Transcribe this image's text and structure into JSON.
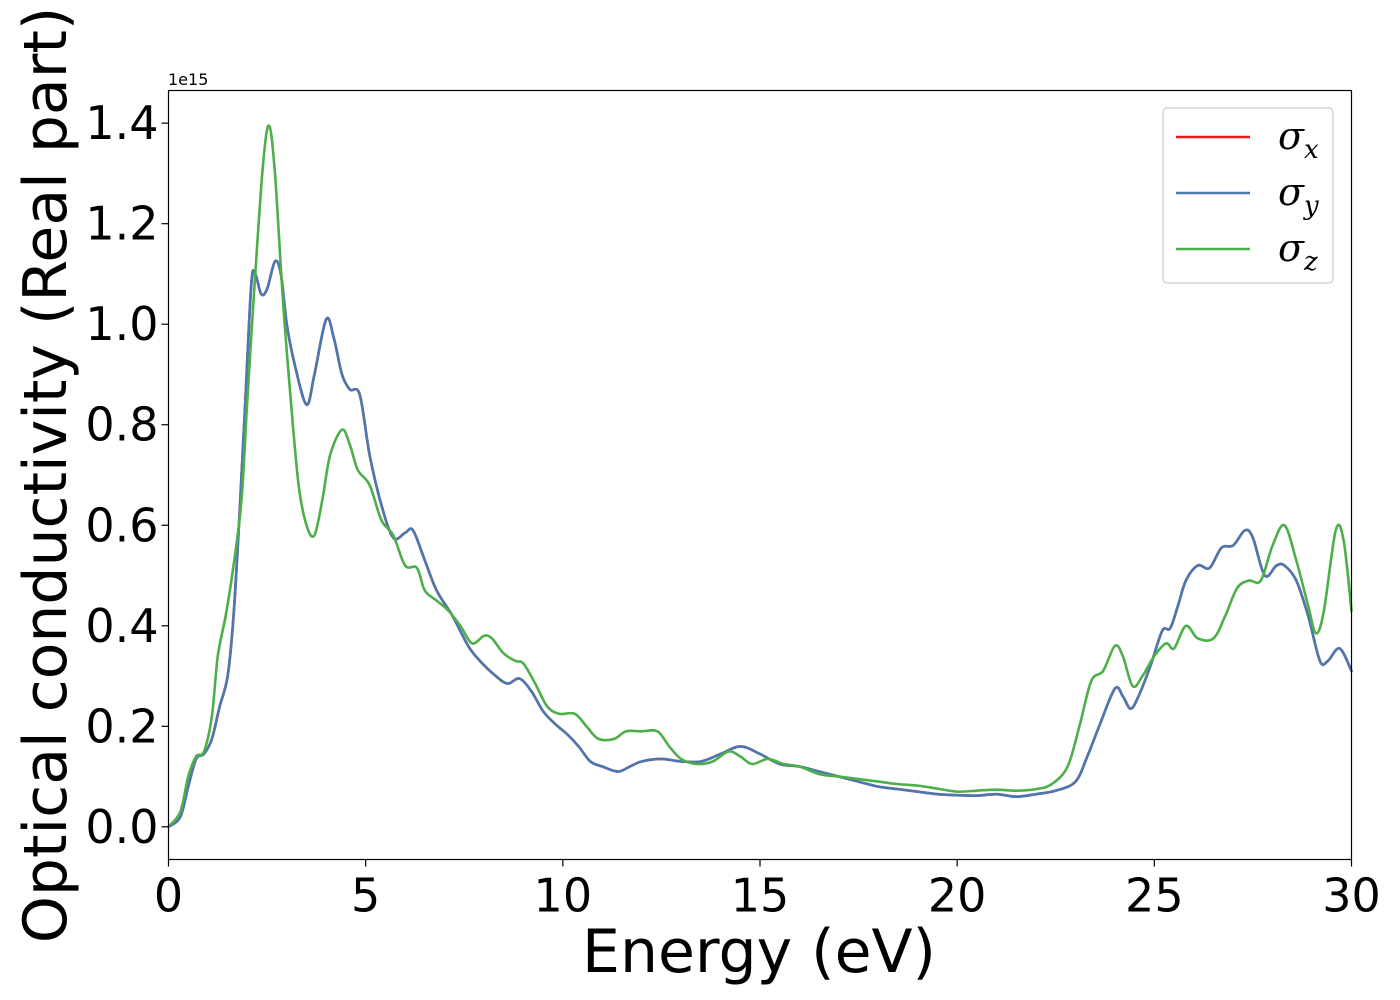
{
  "chart_data": {
    "type": "line",
    "xlabel": "Energy (eV)",
    "ylabel": "Optical conductivity (Real part)",
    "y_offset_label": "1e15",
    "xlim": [
      0,
      30
    ],
    "ylim": [
      -0.065,
      1.465
    ],
    "xticks": [
      0,
      5,
      10,
      15,
      20,
      25,
      30
    ],
    "xtick_labels": [
      "0",
      "5",
      "10",
      "15",
      "20",
      "25",
      "30"
    ],
    "yticks": [
      0.0,
      0.2,
      0.4,
      0.6,
      0.8,
      1.0,
      1.2,
      1.4
    ],
    "ytick_labels": [
      "0.0",
      "0.2",
      "0.4",
      "0.6",
      "0.8",
      "1.0",
      "1.2",
      "1.4"
    ],
    "grid": false,
    "legend_position": "top-right",
    "series": [
      {
        "name": "σ_x",
        "symbol": "σ",
        "subscript": "x",
        "color": "#e41a1c",
        "points": [
          [
            0,
            0
          ],
          [
            0.3,
            0.02
          ],
          [
            0.5,
            0.08
          ],
          [
            0.7,
            0.135
          ],
          [
            0.9,
            0.145
          ],
          [
            1.1,
            0.175
          ],
          [
            1.3,
            0.24
          ],
          [
            1.5,
            0.3
          ],
          [
            1.65,
            0.42
          ],
          [
            1.8,
            0.62
          ],
          [
            1.95,
            0.85
          ],
          [
            2.1,
            1.08
          ],
          [
            2.2,
            1.1
          ],
          [
            2.35,
            1.06
          ],
          [
            2.5,
            1.07
          ],
          [
            2.7,
            1.125
          ],
          [
            2.85,
            1.1
          ],
          [
            3.0,
            1.0
          ],
          [
            3.2,
            0.92
          ],
          [
            3.5,
            0.84
          ],
          [
            3.7,
            0.9
          ],
          [
            4.0,
            1.01
          ],
          [
            4.2,
            0.97
          ],
          [
            4.4,
            0.9
          ],
          [
            4.6,
            0.87
          ],
          [
            4.85,
            0.86
          ],
          [
            5.1,
            0.74
          ],
          [
            5.4,
            0.64
          ],
          [
            5.7,
            0.575
          ],
          [
            6.0,
            0.585
          ],
          [
            6.2,
            0.59
          ],
          [
            6.5,
            0.53
          ],
          [
            6.8,
            0.47
          ],
          [
            7.2,
            0.42
          ],
          [
            7.6,
            0.36
          ],
          [
            7.9,
            0.33
          ],
          [
            8.3,
            0.3
          ],
          [
            8.6,
            0.285
          ],
          [
            8.9,
            0.295
          ],
          [
            9.2,
            0.27
          ],
          [
            9.5,
            0.23
          ],
          [
            9.8,
            0.205
          ],
          [
            10.1,
            0.185
          ],
          [
            10.4,
            0.16
          ],
          [
            10.7,
            0.13
          ],
          [
            11.0,
            0.12
          ],
          [
            11.4,
            0.11
          ],
          [
            11.7,
            0.12
          ],
          [
            12.0,
            0.13
          ],
          [
            12.5,
            0.135
          ],
          [
            13.0,
            0.13
          ],
          [
            13.5,
            0.13
          ],
          [
            14.0,
            0.145
          ],
          [
            14.5,
            0.16
          ],
          [
            15.0,
            0.145
          ],
          [
            15.5,
            0.125
          ],
          [
            16.0,
            0.12
          ],
          [
            16.5,
            0.11
          ],
          [
            17.0,
            0.1
          ],
          [
            17.5,
            0.09
          ],
          [
            18.0,
            0.08
          ],
          [
            18.5,
            0.075
          ],
          [
            19.0,
            0.07
          ],
          [
            19.5,
            0.065
          ],
          [
            20.0,
            0.063
          ],
          [
            20.5,
            0.062
          ],
          [
            21.0,
            0.065
          ],
          [
            21.5,
            0.06
          ],
          [
            22.0,
            0.065
          ],
          [
            22.5,
            0.072
          ],
          [
            23.0,
            0.09
          ],
          [
            23.3,
            0.14
          ],
          [
            23.6,
            0.2
          ],
          [
            24.0,
            0.275
          ],
          [
            24.2,
            0.26
          ],
          [
            24.4,
            0.235
          ],
          [
            24.6,
            0.26
          ],
          [
            24.9,
            0.32
          ],
          [
            25.2,
            0.39
          ],
          [
            25.4,
            0.395
          ],
          [
            25.6,
            0.44
          ],
          [
            25.8,
            0.49
          ],
          [
            26.1,
            0.52
          ],
          [
            26.4,
            0.515
          ],
          [
            26.7,
            0.555
          ],
          [
            27.0,
            0.56
          ],
          [
            27.3,
            0.59
          ],
          [
            27.5,
            0.575
          ],
          [
            27.8,
            0.5
          ],
          [
            28.1,
            0.52
          ],
          [
            28.3,
            0.52
          ],
          [
            28.6,
            0.49
          ],
          [
            28.9,
            0.42
          ],
          [
            29.2,
            0.33
          ],
          [
            29.4,
            0.33
          ],
          [
            29.7,
            0.355
          ],
          [
            30.0,
            0.31
          ]
        ]
      },
      {
        "name": "σ_y",
        "symbol": "σ",
        "subscript": "y",
        "color": "#4a78b0",
        "points": [
          [
            0,
            0
          ],
          [
            0.3,
            0.02
          ],
          [
            0.5,
            0.08
          ],
          [
            0.7,
            0.135
          ],
          [
            0.9,
            0.145
          ],
          [
            1.1,
            0.175
          ],
          [
            1.3,
            0.24
          ],
          [
            1.5,
            0.3
          ],
          [
            1.65,
            0.42
          ],
          [
            1.8,
            0.62
          ],
          [
            1.95,
            0.85
          ],
          [
            2.1,
            1.08
          ],
          [
            2.2,
            1.1
          ],
          [
            2.35,
            1.06
          ],
          [
            2.5,
            1.07
          ],
          [
            2.7,
            1.125
          ],
          [
            2.85,
            1.1
          ],
          [
            3.0,
            1.0
          ],
          [
            3.2,
            0.92
          ],
          [
            3.5,
            0.84
          ],
          [
            3.7,
            0.9
          ],
          [
            4.0,
            1.01
          ],
          [
            4.2,
            0.97
          ],
          [
            4.4,
            0.9
          ],
          [
            4.6,
            0.87
          ],
          [
            4.85,
            0.86
          ],
          [
            5.1,
            0.74
          ],
          [
            5.4,
            0.64
          ],
          [
            5.7,
            0.575
          ],
          [
            6.0,
            0.585
          ],
          [
            6.2,
            0.59
          ],
          [
            6.5,
            0.53
          ],
          [
            6.8,
            0.47
          ],
          [
            7.2,
            0.42
          ],
          [
            7.6,
            0.36
          ],
          [
            7.9,
            0.33
          ],
          [
            8.3,
            0.3
          ],
          [
            8.6,
            0.285
          ],
          [
            8.9,
            0.295
          ],
          [
            9.2,
            0.27
          ],
          [
            9.5,
            0.23
          ],
          [
            9.8,
            0.205
          ],
          [
            10.1,
            0.185
          ],
          [
            10.4,
            0.16
          ],
          [
            10.7,
            0.13
          ],
          [
            11.0,
            0.12
          ],
          [
            11.4,
            0.11
          ],
          [
            11.7,
            0.12
          ],
          [
            12.0,
            0.13
          ],
          [
            12.5,
            0.135
          ],
          [
            13.0,
            0.13
          ],
          [
            13.5,
            0.13
          ],
          [
            14.0,
            0.145
          ],
          [
            14.5,
            0.16
          ],
          [
            15.0,
            0.145
          ],
          [
            15.5,
            0.125
          ],
          [
            16.0,
            0.12
          ],
          [
            16.5,
            0.11
          ],
          [
            17.0,
            0.1
          ],
          [
            17.5,
            0.09
          ],
          [
            18.0,
            0.08
          ],
          [
            18.5,
            0.075
          ],
          [
            19.0,
            0.07
          ],
          [
            19.5,
            0.065
          ],
          [
            20.0,
            0.063
          ],
          [
            20.5,
            0.062
          ],
          [
            21.0,
            0.065
          ],
          [
            21.5,
            0.06
          ],
          [
            22.0,
            0.065
          ],
          [
            22.5,
            0.072
          ],
          [
            23.0,
            0.09
          ],
          [
            23.3,
            0.14
          ],
          [
            23.6,
            0.2
          ],
          [
            24.0,
            0.275
          ],
          [
            24.2,
            0.26
          ],
          [
            24.4,
            0.235
          ],
          [
            24.6,
            0.26
          ],
          [
            24.9,
            0.32
          ],
          [
            25.2,
            0.39
          ],
          [
            25.4,
            0.395
          ],
          [
            25.6,
            0.44
          ],
          [
            25.8,
            0.49
          ],
          [
            26.1,
            0.52
          ],
          [
            26.4,
            0.515
          ],
          [
            26.7,
            0.555
          ],
          [
            27.0,
            0.56
          ],
          [
            27.3,
            0.59
          ],
          [
            27.5,
            0.575
          ],
          [
            27.8,
            0.5
          ],
          [
            28.1,
            0.52
          ],
          [
            28.3,
            0.52
          ],
          [
            28.6,
            0.49
          ],
          [
            28.9,
            0.42
          ],
          [
            29.2,
            0.33
          ],
          [
            29.4,
            0.33
          ],
          [
            29.7,
            0.355
          ],
          [
            30.0,
            0.31
          ]
        ]
      },
      {
        "name": "σ_z",
        "symbol": "σ",
        "subscript": "z",
        "color": "#4daf4a",
        "points": [
          [
            0,
            0
          ],
          [
            0.3,
            0.03
          ],
          [
            0.5,
            0.1
          ],
          [
            0.7,
            0.14
          ],
          [
            0.9,
            0.15
          ],
          [
            1.1,
            0.22
          ],
          [
            1.25,
            0.34
          ],
          [
            1.45,
            0.42
          ],
          [
            1.65,
            0.52
          ],
          [
            1.85,
            0.65
          ],
          [
            2.0,
            0.85
          ],
          [
            2.2,
            1.1
          ],
          [
            2.4,
            1.32
          ],
          [
            2.55,
            1.395
          ],
          [
            2.7,
            1.3
          ],
          [
            2.9,
            1.05
          ],
          [
            3.1,
            0.85
          ],
          [
            3.3,
            0.68
          ],
          [
            3.5,
            0.6
          ],
          [
            3.7,
            0.58
          ],
          [
            3.9,
            0.65
          ],
          [
            4.1,
            0.74
          ],
          [
            4.4,
            0.79
          ],
          [
            4.6,
            0.76
          ],
          [
            4.8,
            0.71
          ],
          [
            5.1,
            0.68
          ],
          [
            5.4,
            0.61
          ],
          [
            5.7,
            0.58
          ],
          [
            6.0,
            0.52
          ],
          [
            6.3,
            0.515
          ],
          [
            6.5,
            0.47
          ],
          [
            6.8,
            0.45
          ],
          [
            7.1,
            0.43
          ],
          [
            7.4,
            0.4
          ],
          [
            7.7,
            0.365
          ],
          [
            8.0,
            0.38
          ],
          [
            8.2,
            0.375
          ],
          [
            8.5,
            0.345
          ],
          [
            8.8,
            0.33
          ],
          [
            9.0,
            0.325
          ],
          [
            9.3,
            0.285
          ],
          [
            9.6,
            0.24
          ],
          [
            9.9,
            0.225
          ],
          [
            10.3,
            0.225
          ],
          [
            10.6,
            0.2
          ],
          [
            10.9,
            0.175
          ],
          [
            11.3,
            0.175
          ],
          [
            11.6,
            0.19
          ],
          [
            12.0,
            0.19
          ],
          [
            12.4,
            0.19
          ],
          [
            12.7,
            0.16
          ],
          [
            13.0,
            0.135
          ],
          [
            13.4,
            0.125
          ],
          [
            13.8,
            0.13
          ],
          [
            14.2,
            0.15
          ],
          [
            14.5,
            0.14
          ],
          [
            14.8,
            0.125
          ],
          [
            15.2,
            0.135
          ],
          [
            15.6,
            0.125
          ],
          [
            16.0,
            0.12
          ],
          [
            16.5,
            0.105
          ],
          [
            17.0,
            0.1
          ],
          [
            17.5,
            0.095
          ],
          [
            18.0,
            0.09
          ],
          [
            18.5,
            0.085
          ],
          [
            19.0,
            0.082
          ],
          [
            19.5,
            0.076
          ],
          [
            20.0,
            0.07
          ],
          [
            20.5,
            0.072
          ],
          [
            21.0,
            0.074
          ],
          [
            21.5,
            0.072
          ],
          [
            22.0,
            0.075
          ],
          [
            22.4,
            0.085
          ],
          [
            22.8,
            0.12
          ],
          [
            23.1,
            0.2
          ],
          [
            23.4,
            0.29
          ],
          [
            23.7,
            0.31
          ],
          [
            24.0,
            0.36
          ],
          [
            24.2,
            0.34
          ],
          [
            24.45,
            0.28
          ],
          [
            24.7,
            0.3
          ],
          [
            25.0,
            0.34
          ],
          [
            25.3,
            0.365
          ],
          [
            25.5,
            0.355
          ],
          [
            25.8,
            0.4
          ],
          [
            26.1,
            0.375
          ],
          [
            26.5,
            0.375
          ],
          [
            26.8,
            0.42
          ],
          [
            27.1,
            0.475
          ],
          [
            27.4,
            0.49
          ],
          [
            27.7,
            0.49
          ],
          [
            28.0,
            0.56
          ],
          [
            28.3,
            0.6
          ],
          [
            28.6,
            0.53
          ],
          [
            28.9,
            0.44
          ],
          [
            29.1,
            0.385
          ],
          [
            29.3,
            0.43
          ],
          [
            29.6,
            0.59
          ],
          [
            29.8,
            0.57
          ],
          [
            30.0,
            0.43
          ]
        ]
      }
    ]
  }
}
